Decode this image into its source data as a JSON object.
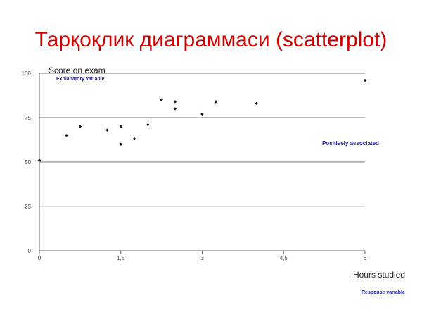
{
  "slide": {
    "title": "Тарқоқлик диаграммаси (scatterplot)"
  },
  "chart_data": {
    "type": "scatter",
    "title": "",
    "ylabel": "Score on exam",
    "xlabel": "Hours studied",
    "xlim": [
      0,
      6
    ],
    "ylim": [
      0,
      100
    ],
    "x_ticks": [
      0,
      1.5,
      3,
      4.5,
      6
    ],
    "x_tick_labels": [
      "0",
      "1,5",
      "3",
      "4,5",
      "6"
    ],
    "y_ticks": [
      0,
      25,
      50,
      75,
      100
    ],
    "y_tick_labels": [
      "0",
      "25",
      "50",
      "75",
      "100"
    ],
    "grid": "horizontal",
    "points": [
      {
        "x": 0,
        "y": 51
      },
      {
        "x": 0.5,
        "y": 65
      },
      {
        "x": 0.75,
        "y": 70
      },
      {
        "x": 1.25,
        "y": 68
      },
      {
        "x": 1.5,
        "y": 70
      },
      {
        "x": 1.5,
        "y": 60
      },
      {
        "x": 1.75,
        "y": 63
      },
      {
        "x": 2,
        "y": 71
      },
      {
        "x": 2.25,
        "y": 85
      },
      {
        "x": 2.5,
        "y": 84
      },
      {
        "x": 2.5,
        "y": 80
      },
      {
        "x": 3,
        "y": 77
      },
      {
        "x": 3.25,
        "y": 84
      },
      {
        "x": 4,
        "y": 83
      },
      {
        "x": 6,
        "y": 96
      }
    ],
    "annotations": {
      "explanatory": "Explanatory variable",
      "association": "Positively associated",
      "response": "Response variable"
    },
    "colors": {
      "title": "#d40000",
      "annotation": "#1a1aa6",
      "points": "#111111",
      "gridline_major": "#7a7a7a",
      "gridline_minor": "#c9c9c9"
    }
  }
}
